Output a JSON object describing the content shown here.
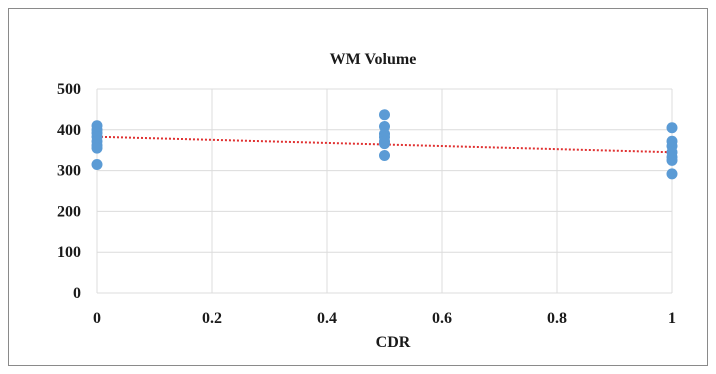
{
  "chart_data": {
    "type": "scatter",
    "title": "WM Volume",
    "xlabel": "CDR",
    "ylabel": "",
    "xlim": [
      0,
      1
    ],
    "ylim": [
      0,
      500
    ],
    "xticks": [
      "0",
      "0.2",
      "0.4",
      "0.6",
      "0.8",
      "1"
    ],
    "yticks": [
      "0",
      "100",
      "200",
      "300",
      "400",
      "500"
    ],
    "grid": true,
    "legend": "none",
    "colors": {
      "points": "#5b9bd5",
      "trendline": "#e03030",
      "grid": "#dcdcdc"
    },
    "series": [
      {
        "points": [
          {
            "x": 0,
            "y": 410
          },
          {
            "x": 0,
            "y": 400
          },
          {
            "x": 0,
            "y": 392
          },
          {
            "x": 0,
            "y": 383
          },
          {
            "x": 0,
            "y": 372
          },
          {
            "x": 0,
            "y": 362
          },
          {
            "x": 0,
            "y": 355
          },
          {
            "x": 0,
            "y": 315
          },
          {
            "x": 0.5,
            "y": 437
          },
          {
            "x": 0.5,
            "y": 408
          },
          {
            "x": 0.5,
            "y": 390
          },
          {
            "x": 0.5,
            "y": 382
          },
          {
            "x": 0.5,
            "y": 372
          },
          {
            "x": 0.5,
            "y": 366
          },
          {
            "x": 0.5,
            "y": 337
          },
          {
            "x": 1,
            "y": 405
          },
          {
            "x": 1,
            "y": 372
          },
          {
            "x": 1,
            "y": 360
          },
          {
            "x": 1,
            "y": 345
          },
          {
            "x": 1,
            "y": 333
          },
          {
            "x": 1,
            "y": 325
          },
          {
            "x": 1,
            "y": 292
          }
        ]
      }
    ],
    "trendline": {
      "type": "linear",
      "style": "dotted",
      "from": {
        "x": 0,
        "y": 383
      },
      "to": {
        "x": 1,
        "y": 345
      }
    }
  }
}
